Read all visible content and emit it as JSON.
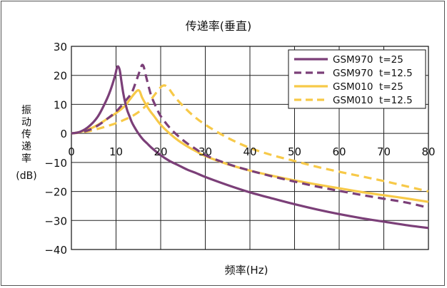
{
  "chart_data": {
    "type": "line",
    "title": "传递率(垂直)",
    "xlabel": "频率(Hz)",
    "ylabel_chars": [
      "振",
      "动",
      "传",
      "递",
      "率"
    ],
    "ylabel_unit": "(dB)",
    "xlim": [
      0,
      80
    ],
    "ylim": [
      -40,
      30
    ],
    "xticks": [
      0,
      10,
      20,
      30,
      40,
      50,
      60,
      70,
      80
    ],
    "yticks": [
      30,
      20,
      10,
      0,
      -10,
      -20,
      -30,
      -40
    ],
    "xtick_labels": [
      "0",
      "10",
      "20",
      "30",
      "40",
      "50",
      "60",
      "70",
      "80"
    ],
    "ytick_labels": [
      "30",
      "20",
      "10",
      "0",
      "−10",
      "−20",
      "−30",
      "−40"
    ],
    "grid": true,
    "legend_position": "top-right",
    "series": [
      {
        "name": "GSM970  t=25",
        "color": "#7b3f78",
        "dash": "solid",
        "x": [
          0,
          2,
          4,
          6,
          8,
          9,
          9.8,
          10.3,
          10.8,
          11.2,
          11.6,
          12,
          12.5,
          13,
          13.5,
          14,
          15,
          16,
          17,
          18,
          20,
          22,
          24,
          26,
          28,
          30,
          35,
          40,
          45,
          50,
          55,
          60,
          65,
          70,
          75,
          80
        ],
        "y": [
          0,
          0.6,
          2.5,
          6,
          12,
          16,
          20,
          23,
          22,
          18,
          14,
          11,
          8,
          6,
          4,
          2.5,
          0,
          -2,
          -3.5,
          -5,
          -7.5,
          -9.5,
          -11,
          -12.5,
          -13.7,
          -15,
          -17.8,
          -20.3,
          -22.4,
          -24.4,
          -26.2,
          -27.8,
          -29.2,
          -30.4,
          -31.6,
          -32.6
        ]
      },
      {
        "name": "GSM970  t=12.5",
        "color": "#7b3f78",
        "dash": "dashed",
        "x": [
          0,
          2,
          4,
          6,
          8,
          10,
          12,
          13.5,
          14.5,
          15.2,
          15.8,
          16.2,
          16.5,
          17,
          17.5,
          18,
          19,
          20,
          22,
          24,
          26,
          28,
          30,
          35,
          40,
          45,
          50,
          55,
          60,
          65,
          70,
          75,
          80
        ],
        "y": [
          0,
          0.4,
          1.2,
          2.8,
          5,
          7.5,
          11,
          14,
          18,
          21,
          23.5,
          23,
          21,
          18,
          15,
          12.5,
          9,
          6,
          2,
          -1,
          -3.5,
          -5.5,
          -7.5,
          -10.5,
          -12.8,
          -14.8,
          -16.6,
          -18.3,
          -19.8,
          -21.2,
          -22.5,
          -23.8,
          -25.6
        ]
      },
      {
        "name": "GSM010  t=25",
        "color": "#f7c948",
        "dash": "solid",
        "x": [
          0,
          2,
          4,
          6,
          8,
          10,
          12,
          13,
          14,
          14.8,
          15.3,
          15.8,
          16.5,
          17.5,
          18.5,
          20,
          22,
          24,
          26,
          28,
          30,
          35,
          40,
          45,
          50,
          55,
          60,
          65,
          70,
          75,
          80
        ],
        "y": [
          0,
          0.5,
          1.5,
          3,
          5,
          7,
          9.5,
          11.5,
          13.5,
          14.8,
          14.5,
          12.5,
          10.5,
          8,
          6,
          3,
          0,
          -2.5,
          -4.5,
          -6.2,
          -7.8,
          -10.6,
          -12.8,
          -14.6,
          -16.2,
          -17.6,
          -18.9,
          -20.2,
          -21.3,
          -22.4,
          -23.6
        ]
      },
      {
        "name": "GSM010  t=12.5",
        "color": "#f7c948",
        "dash": "dashed",
        "x": [
          0,
          2,
          4,
          6,
          8,
          10,
          12,
          14,
          16,
          17.5,
          18.5,
          19.5,
          20.3,
          21,
          21.8,
          22.5,
          23.5,
          25,
          27,
          30,
          35,
          40,
          45,
          50,
          55,
          60,
          65,
          70,
          75,
          80
        ],
        "y": [
          0,
          0.3,
          0.8,
          1.6,
          2.5,
          3.5,
          4.8,
          6.3,
          8.5,
          11,
          13,
          15,
          16.3,
          16.5,
          15.5,
          14,
          12,
          9.5,
          6.5,
          3,
          -1.5,
          -5,
          -7.5,
          -9.5,
          -11.5,
          -13.2,
          -14.8,
          -16.4,
          -18.2,
          -20
        ]
      }
    ]
  }
}
